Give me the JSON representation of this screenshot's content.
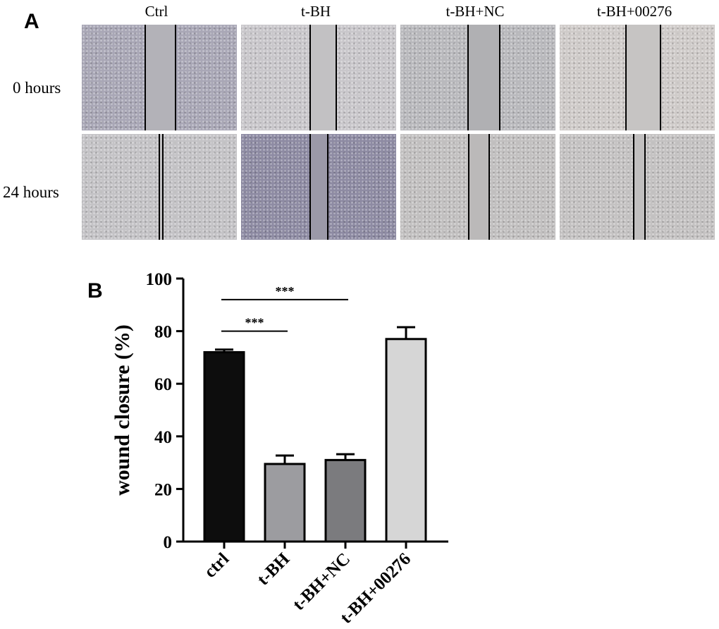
{
  "panel_a": {
    "letter": "A",
    "columns": [
      "Ctrl",
      "t-BH",
      "t-BH+NC",
      "t-BH+00276"
    ],
    "rows": [
      "0 hours",
      "24 hours"
    ],
    "tile_colors": [
      [
        "#a9a7b6",
        "#c9c7cb",
        "#b9b9bd",
        "#cfcbc9"
      ],
      [
        "#c4c3c6",
        "#8e8ba3",
        "#c2c0c0",
        "#c4c2c2"
      ]
    ],
    "gap_colors": [
      [
        "#b3b2b8",
        "#c2c1c3",
        "#b0b0b3",
        "#c6c4c3"
      ],
      [
        "#c1c0c2",
        "#9b99a8",
        "#bbb9b9",
        "#c1bfbf"
      ]
    ]
  },
  "panel_b": {
    "letter": "B"
  },
  "chart_data": {
    "type": "bar",
    "title": "",
    "xlabel": "",
    "ylabel": "wound closure (%)",
    "categories": [
      "ctrl",
      "t-BH",
      "t-BH+NC",
      "t-BH+00276"
    ],
    "values": [
      72,
      29.5,
      31,
      77
    ],
    "errors": [
      1,
      3.2,
      2.2,
      4.5
    ],
    "ylim": [
      0,
      100
    ],
    "yticks": [
      0,
      20,
      40,
      60,
      80,
      100
    ],
    "colors": [
      "#0d0d0d",
      "#9c9ca0",
      "#7b7b7e",
      "#d6d6d6"
    ],
    "significance": [
      {
        "from": "ctrl",
        "to": "t-BH",
        "label": "***",
        "y": 80
      },
      {
        "from": "ctrl",
        "to": "t-BH+NC",
        "label": "***",
        "y": 92
      }
    ]
  }
}
